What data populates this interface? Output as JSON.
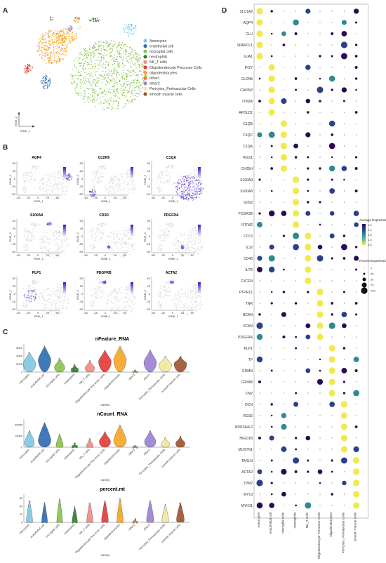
{
  "panel_labels": {
    "a": "A",
    "b": "B",
    "c": "C",
    "d": "D"
  },
  "panel_a": {
    "axis_x": "tSNE_1",
    "axis_y": "tSNE_2",
    "legend": [
      {
        "label": "Astrocytes",
        "color": "#7ec8e3"
      },
      {
        "label": "endothelial cell",
        "color": "#2b6cb0"
      },
      {
        "label": "microglial cells",
        "color": "#8bc34a"
      },
      {
        "label": "neutrophils",
        "color": "#2e7d32"
      },
      {
        "label": "NK_T cells",
        "color": "#f28b82"
      },
      {
        "label": "Oligodendrocyte Precursor Cells",
        "color": "#e53935"
      },
      {
        "label": "oligodendrocytes",
        "color": "#f6a623"
      },
      {
        "label": "other1",
        "color": "#e67e22"
      },
      {
        "label": "other2",
        "color": "#9b7fd4"
      },
      {
        "label": "Pericytes_Perivascular Cells",
        "color": "#f3e7a0"
      },
      {
        "label": "smooth muscle cells",
        "color": "#a0522d"
      }
    ]
  },
  "panel_b": {
    "genes": [
      "AQP4",
      "CLDN5",
      "C1QA",
      "S100A8",
      "CD3D",
      "PDGFRA",
      "PLP1",
      "PDGFRB",
      "ACTA2"
    ],
    "axis_x": "tSNE_1",
    "axis_y": "tSNE_2",
    "x_ticks": [
      "-50",
      "-25",
      "0",
      "25",
      "50"
    ],
    "y_ticks": [
      "50",
      "25",
      "0",
      "-25",
      "-50"
    ]
  },
  "chart_data": [
    {
      "type": "violin",
      "title": "nFeature_RNA",
      "xlabel": "Identity",
      "ylabel": "",
      "y_ticks": [
        "6000",
        "4000",
        "2000",
        "0"
      ],
      "ylim": [
        0,
        7000
      ],
      "categories": [
        "Astrocytes",
        "endothelial cell",
        "microglial cells",
        "neutrophils",
        "NK_T cells",
        "Oligodendrocyte Precursor Cells",
        "oligodendrocytes",
        "other1",
        "other2",
        "Pericytes_Perivascular Cells",
        "smooth muscle cells"
      ],
      "median_values": [
        2000,
        3000,
        1200,
        600,
        1000,
        2600,
        3000,
        150,
        2400,
        1800,
        2000
      ],
      "max_values": [
        5000,
        6500,
        3500,
        2000,
        3000,
        5500,
        6500,
        600,
        5500,
        4000,
        4000
      ]
    },
    {
      "type": "violin",
      "title": "nCount_RNA",
      "xlabel": "Identity",
      "ylabel": "",
      "y_ticks": [
        "20000",
        "10000",
        "0"
      ],
      "ylim": [
        0,
        25000
      ],
      "categories": [
        "Astrocytes",
        "endothelial cell",
        "microglial cells",
        "neutrophils",
        "NK_T cells",
        "Oligodendrocyte Precursor Cells",
        "oligodendrocytes",
        "other1",
        "other2",
        "Pericytes_Perivascular Cells",
        "smooth muscle cells"
      ],
      "median_values": [
        4000,
        6000,
        2000,
        800,
        1500,
        5000,
        6000,
        200,
        5000,
        3000,
        3500
      ],
      "max_values": [
        15000,
        22000,
        12000,
        4000,
        8000,
        14000,
        20000,
        1500,
        15000,
        9000,
        10000
      ]
    },
    {
      "type": "violin",
      "title": "percent.mt",
      "xlabel": "Identity",
      "ylabel": "",
      "y_ticks": [
        "60",
        "40",
        "20",
        "0"
      ],
      "ylim": [
        0,
        70
      ],
      "categories": [
        "Astrocytes",
        "endothelial cell",
        "microglial cells",
        "neutrophils",
        "NK_T cells",
        "Oligodendrocyte Precursor Cells",
        "oligodendrocytes",
        "other1",
        "other2",
        "Pericytes_Perivascular Cells",
        "smooth muscle cells"
      ],
      "median_values": [
        4,
        3,
        3,
        2,
        4,
        5,
        4,
        1,
        6,
        5,
        7
      ],
      "max_values": [
        55,
        50,
        60,
        40,
        50,
        55,
        60,
        10,
        55,
        45,
        50
      ]
    },
    {
      "type": "dotplot",
      "genes": [
        "SLC1A2",
        "AQP4",
        "CLU",
        "SPARCL1",
        "GJA1",
        "IFI27",
        "CLDN5",
        "CAVIN2",
        "ITM2A",
        "APOLD1",
        "C1QB",
        "C1QC",
        "C1QA",
        "RGS1",
        "CH25H",
        "S100A9",
        "S100A8",
        "G0S2",
        "FCGR3B",
        "IFITM2",
        "CCL5",
        "IL32",
        "CD48",
        "IL7R",
        "CXCR4",
        "PTPRZ1",
        "TNR",
        "BCAN",
        "VCAN",
        "PDGFRA",
        "PLP1",
        "TF",
        "ERMN",
        "CRYAB",
        "CNP",
        "DCN",
        "RGS5",
        "NDUFA4L2",
        "HIGD1B",
        "MUSTN1",
        "TAGLN",
        "ACTA2",
        "TPM2",
        "MYL9",
        "MYH11"
      ],
      "cell_types": [
        "Astrocytes",
        "endothelial cell",
        "microglial cells",
        "neutrophils",
        "NK_T cells",
        "Oligodendrocyte Precursor Cells",
        "oligodendrocytes",
        "Pericytes_Perivascular Cells",
        "smooth muscle cells"
      ],
      "marker_column": [
        0,
        0,
        0,
        0,
        0,
        1,
        1,
        1,
        1,
        1,
        2,
        2,
        2,
        2,
        2,
        3,
        3,
        3,
        3,
        3,
        4,
        4,
        4,
        4,
        4,
        5,
        5,
        5,
        5,
        5,
        6,
        6,
        6,
        6,
        6,
        7,
        7,
        7,
        7,
        7,
        8,
        8,
        8,
        8,
        8
      ],
      "legend_expression": {
        "title": "Average Expression",
        "ticks": [
          "2.5",
          "2.0",
          "1.5",
          "1.0",
          "0.5"
        ],
        "colors": [
          "#f2e94e",
          "#6cc08b",
          "#2e8a8f",
          "#2c3e8c",
          "#2a0a55"
        ]
      },
      "legend_percent": {
        "title": "Percent Expressed",
        "values": [
          0,
          25,
          50,
          75,
          100
        ],
        "labels": [
          "0",
          "25",
          "50",
          "75",
          "100"
        ]
      }
    }
  ]
}
